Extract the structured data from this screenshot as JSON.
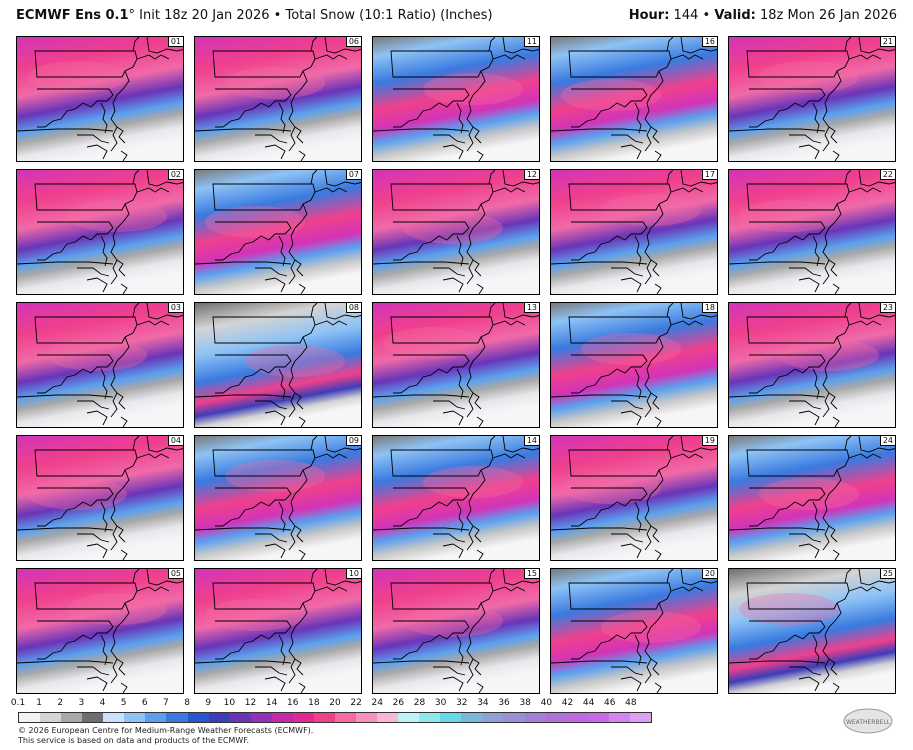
{
  "header": {
    "model": "ECMWF Ens 0.1",
    "degree": "°",
    "init": "Init 18z 20 Jan 2026",
    "bullet": "•",
    "product": "Total Snow (10:1 Ratio) (Inches)",
    "hour_label": "Hour:",
    "hour_value": "144",
    "valid_label": "Valid:",
    "valid_value": "18z Mon 26 Jan 2026"
  },
  "members": [
    "01",
    "06",
    "11",
    "16",
    "21",
    "02",
    "07",
    "12",
    "17",
    "22",
    "03",
    "08",
    "13",
    "18",
    "23",
    "04",
    "09",
    "14",
    "19",
    "24",
    "05",
    "10",
    "15",
    "20",
    "25"
  ],
  "member_intensity": [
    0.85,
    0.8,
    0.55,
    0.45,
    0.8,
    0.8,
    0.45,
    0.75,
    0.7,
    0.8,
    0.7,
    0.25,
    0.7,
    0.5,
    0.65,
    0.75,
    0.5,
    0.6,
    0.7,
    0.55,
    0.75,
    0.7,
    0.7,
    0.5,
    0.35
  ],
  "colorbar": {
    "ticks": [
      "0.1",
      "1",
      "2",
      "3",
      "4",
      "5",
      "6",
      "7",
      "8",
      "9",
      "10",
      "12",
      "14",
      "16",
      "18",
      "20",
      "22",
      "24",
      "26",
      "28",
      "30",
      "32",
      "34",
      "36",
      "38",
      "40",
      "42",
      "44",
      "46",
      "48"
    ],
    "colors": [
      "#f2f2f2",
      "#d4d4d4",
      "#a8a8a8",
      "#6e6e6e",
      "#c8e2fb",
      "#8ec3f5",
      "#5aa0ee",
      "#3a7ae0",
      "#2a56d0",
      "#3d3db8",
      "#6a34b8",
      "#9630b4",
      "#c22aa8",
      "#e12894",
      "#f0408c",
      "#f56aa4",
      "#f792c0",
      "#f9b6d8",
      "#bdf3f3",
      "#8ee8ec",
      "#66d8e8",
      "#7ab8d8",
      "#8fa0d4",
      "#9a8ed4",
      "#a27fd6",
      "#b070dc",
      "#bd68e2",
      "#c86ae8",
      "#d484f0",
      "#de9ef4"
    ]
  },
  "footer": {
    "line1": "© 2026 European Centre for Medium-Range Weather Forecasts (ECMWF).",
    "line2": "This service is based on data and products of the ECMWF."
  },
  "logo_text": "WEATHERBELL"
}
